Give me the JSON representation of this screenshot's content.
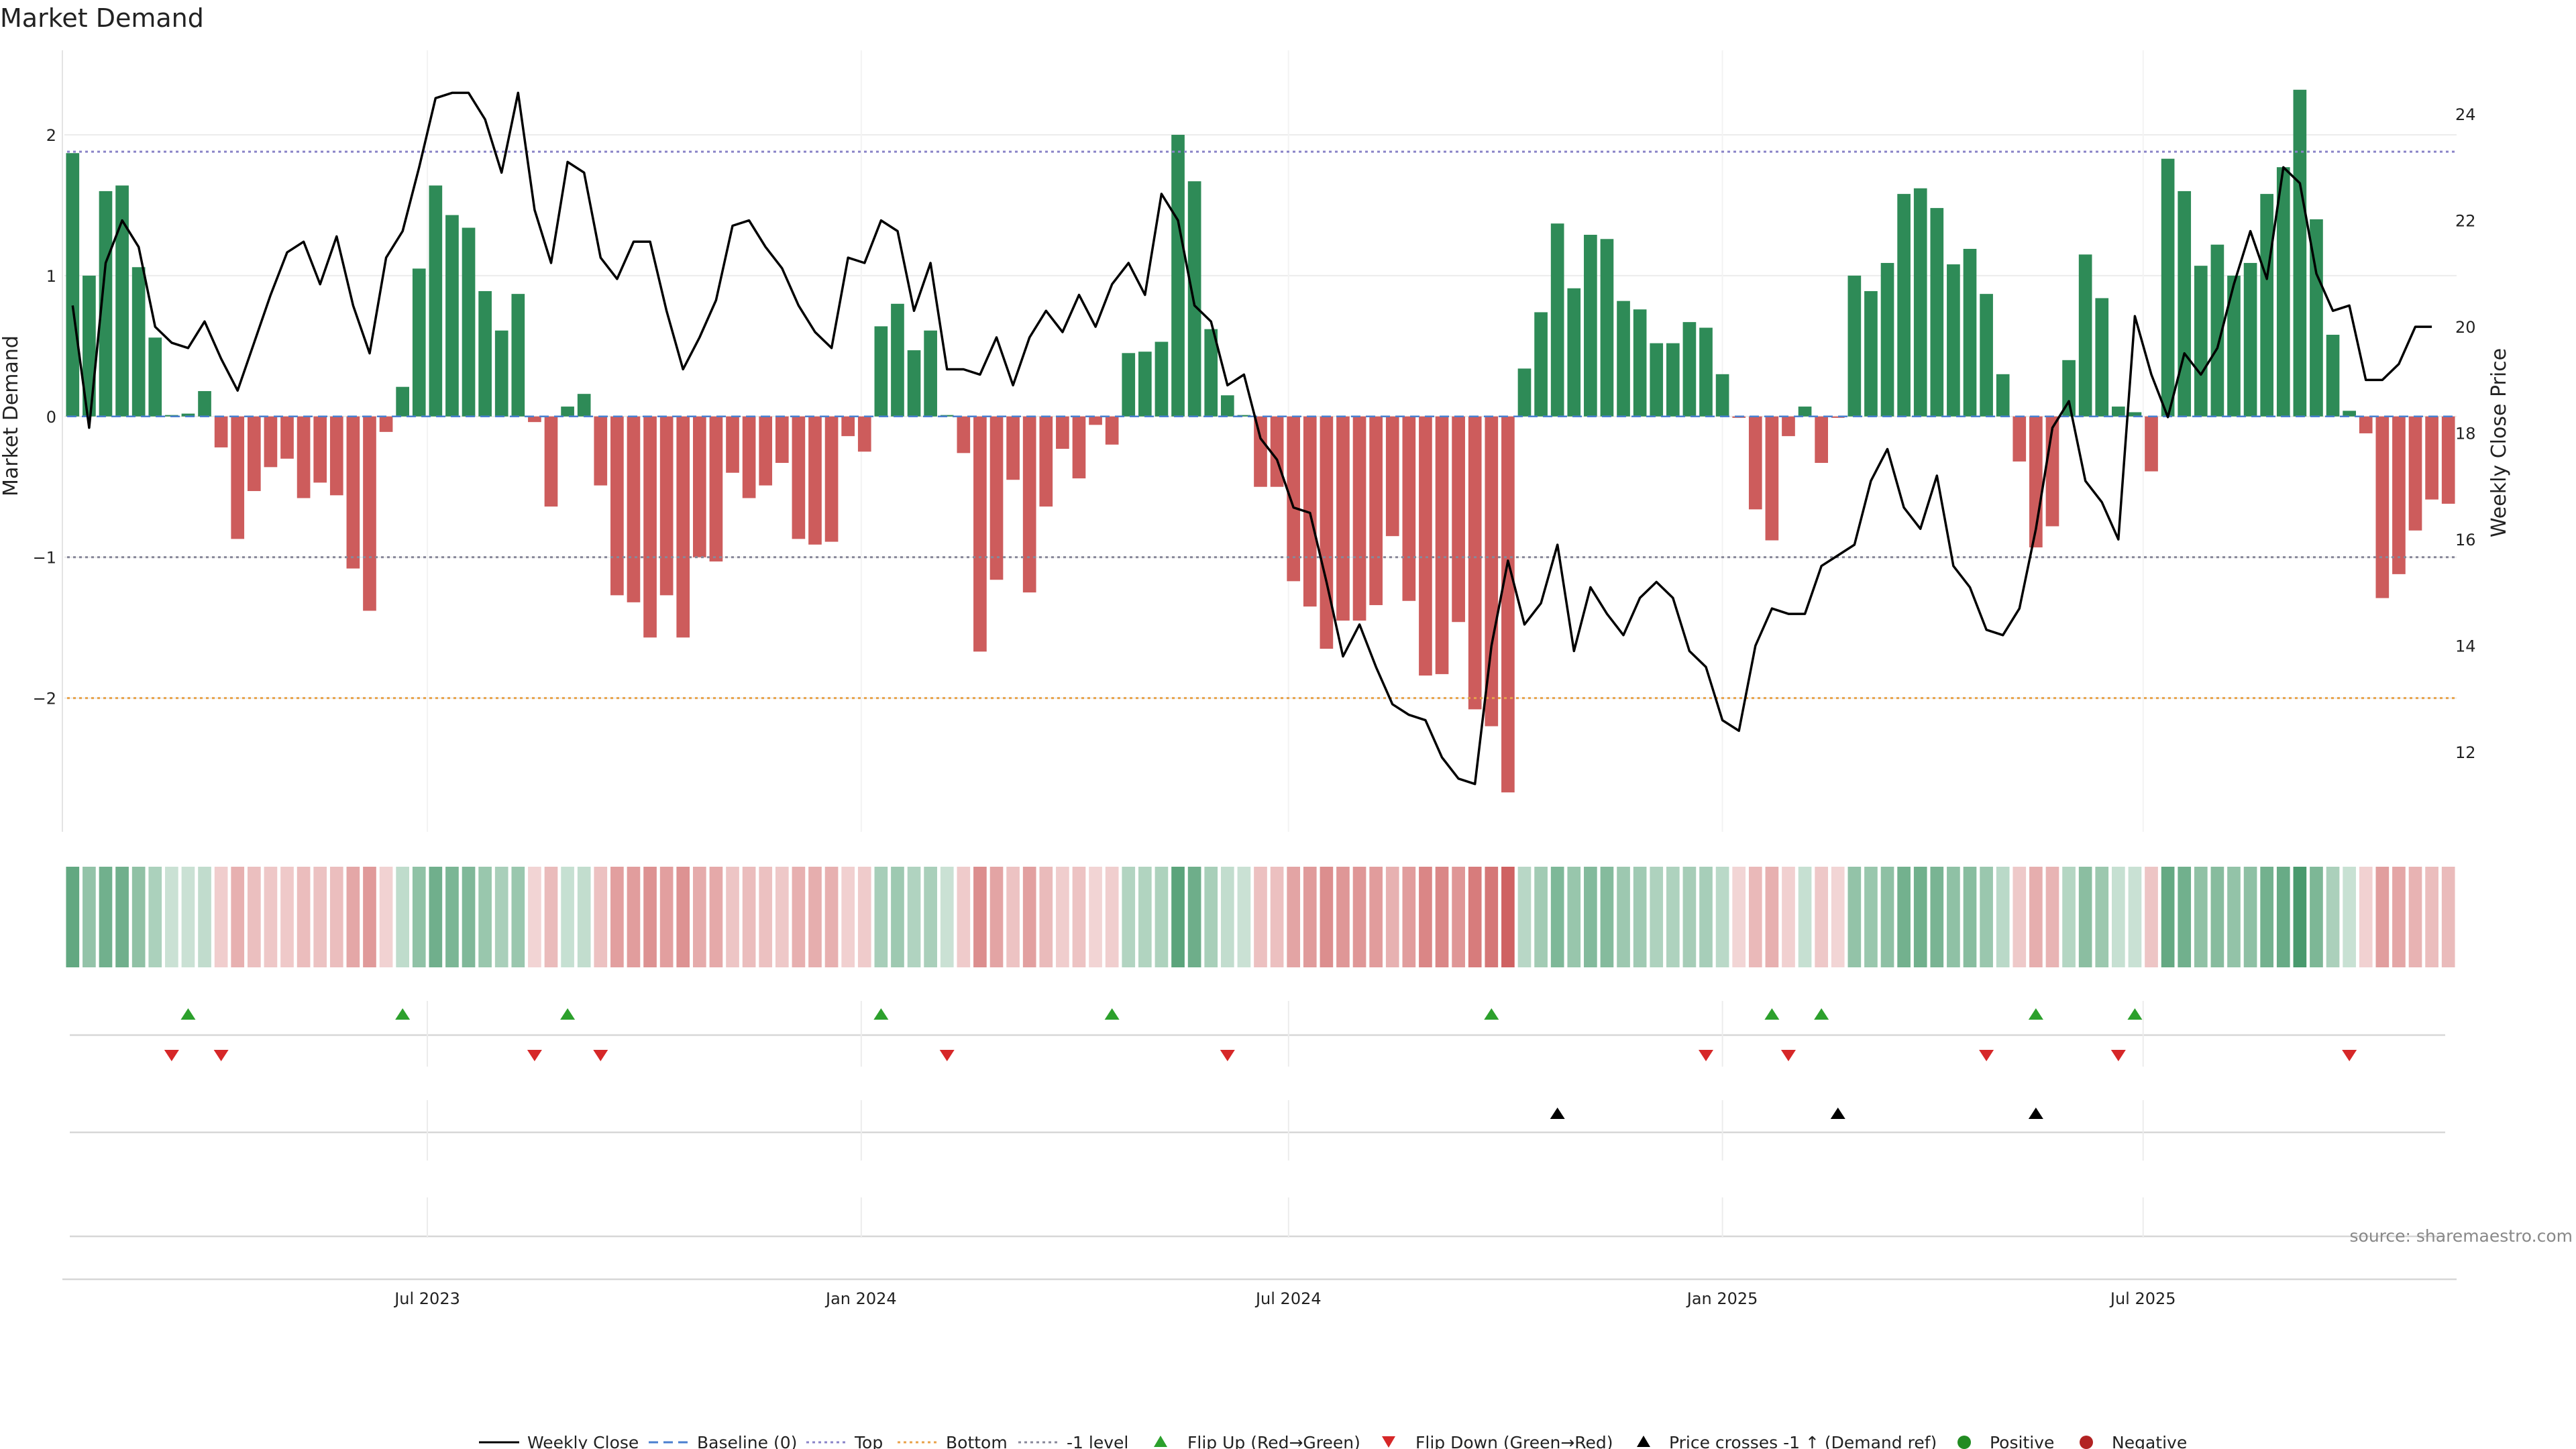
{
  "chart_data": {
    "type": "bar",
    "title": "Market Demand",
    "ylabel": "Market Demand",
    "y2label": "Weekly Close Price",
    "ylim": [
      -2.95,
      2.6
    ],
    "y2lim": [
      10.5,
      25.2
    ],
    "yticks": [
      -2,
      -1,
      0,
      1,
      2
    ],
    "y2ticks": [
      12,
      14,
      16,
      18,
      20,
      22,
      24
    ],
    "date_ticks": [
      "Jul 2023",
      "Jan 2024",
      "Jul 2024",
      "Jan 2025",
      "Jul 2025"
    ],
    "date_tick_weeks": [
      22,
      48.3,
      74.2,
      100.5,
      126
    ],
    "levels": {
      "top": 1.88,
      "bottom": -2.0,
      "minus_one": -1.0
    },
    "demand": [
      1.87,
      1.0,
      1.6,
      1.64,
      1.06,
      0.56,
      0.01,
      0.02,
      0.18,
      -0.22,
      -0.87,
      -0.53,
      -0.36,
      -0.3,
      -0.58,
      -0.47,
      -0.56,
      -1.08,
      -1.38,
      -0.11,
      0.21,
      1.05,
      1.64,
      1.43,
      1.34,
      0.89,
      0.61,
      0.87,
      -0.04,
      -0.64,
      0.07,
      0.16,
      -0.49,
      -1.27,
      -1.32,
      -1.57,
      -1.27,
      -1.57,
      -1.0,
      -1.03,
      -0.4,
      -0.58,
      -0.49,
      -0.33,
      -0.87,
      -0.91,
      -0.89,
      -0.14,
      -0.25,
      0.64,
      0.8,
      0.47,
      0.61,
      0.01,
      -0.26,
      -1.67,
      -1.16,
      -0.45,
      -1.25,
      -0.64,
      -0.23,
      -0.44,
      -0.06,
      -0.2,
      0.45,
      0.46,
      0.53,
      2.0,
      1.67,
      0.62,
      0.15,
      0.01,
      -0.5,
      -0.5,
      -1.17,
      -1.35,
      -1.65,
      -1.45,
      -1.45,
      -1.34,
      -0.85,
      -1.31,
      -1.84,
      -1.83,
      -1.46,
      -2.08,
      -2.2,
      -2.67,
      0.34,
      0.74,
      1.37,
      0.91,
      1.29,
      1.26,
      0.82,
      0.76,
      0.52,
      0.52,
      0.67,
      0.63,
      0.3,
      -0.01,
      -0.66,
      -0.88,
      -0.14,
      0.07,
      -0.33,
      -0.01,
      1.0,
      0.89,
      1.09,
      1.58,
      1.62,
      1.48,
      1.08,
      1.19,
      0.87,
      0.3,
      -0.32,
      -0.93,
      -0.78,
      0.4,
      1.15,
      0.84,
      0.07,
      0.03,
      -0.39,
      1.83,
      1.6,
      1.07,
      1.22,
      1.0,
      1.09,
      1.58,
      1.77,
      2.32,
      1.4,
      0.58,
      0.04,
      -0.12,
      -1.29,
      -1.12,
      -0.81,
      -0.59,
      -0.62
    ],
    "price": [
      20.4,
      18.1,
      21.2,
      22.0,
      21.5,
      20.0,
      19.7,
      19.6,
      20.1,
      19.4,
      18.8,
      19.7,
      20.6,
      21.4,
      21.6,
      20.8,
      21.7,
      20.4,
      19.5,
      21.3,
      21.8,
      23.0,
      24.3,
      24.4,
      24.4,
      23.9,
      22.9,
      24.4,
      22.2,
      21.2,
      23.1,
      22.9,
      21.3,
      20.9,
      21.6,
      21.6,
      20.3,
      19.2,
      19.8,
      20.5,
      21.9,
      22.0,
      21.5,
      21.1,
      20.4,
      19.9,
      19.6,
      21.3,
      21.2,
      22.0,
      21.8,
      20.3,
      21.2,
      19.2,
      19.2,
      19.1,
      19.8,
      18.9,
      19.8,
      20.3,
      19.9,
      20.6,
      20.0,
      20.8,
      21.2,
      20.6,
      22.5,
      22.0,
      20.4,
      20.1,
      18.9,
      19.1,
      17.9,
      17.5,
      16.6,
      16.5,
      15.2,
      13.8,
      14.4,
      13.6,
      12.9,
      12.7,
      12.6,
      11.9,
      11.5,
      11.4,
      14.0,
      15.6,
      14.4,
      14.8,
      15.9,
      13.9,
      15.1,
      14.6,
      14.2,
      14.9,
      15.2,
      14.9,
      13.9,
      13.6,
      12.6,
      12.4,
      14.0,
      14.7,
      14.6,
      14.6,
      15.5,
      15.7,
      15.9,
      17.1,
      17.7,
      16.6,
      16.2,
      17.2,
      15.5,
      15.1,
      14.3,
      14.2,
      14.7,
      16.2,
      18.1,
      18.6,
      17.1,
      16.7,
      16.0,
      20.2,
      19.1,
      18.3,
      19.5,
      19.1,
      19.6,
      20.8,
      21.8,
      20.9,
      23.0,
      22.7,
      21.0,
      20.3,
      20.4,
      19.0,
      19.0,
      19.3,
      20.0,
      20.0
    ],
    "flip_up_weeks": [
      7,
      20,
      30,
      49,
      63,
      86,
      103,
      106,
      119,
      125
    ],
    "flip_down_weeks": [
      6,
      9,
      28,
      32,
      53,
      70,
      99,
      104,
      116,
      124,
      138
    ],
    "price_cross_weeks": [
      90,
      107,
      119
    ],
    "legend": [
      "Weekly Close",
      "Baseline (0)",
      "Top",
      "Bottom",
      "-1 level",
      "Flip Up (Red→Green)",
      "Flip Down (Green→Red)",
      "Price crosses -1 ↑ (Demand ref)",
      "Positive",
      "Negative"
    ],
    "source": "source: sharemaestro.com"
  },
  "colors": {
    "positive": "#2e8b57",
    "negative": "#cd5c5c",
    "line": "#000000",
    "top": "#8a84c8",
    "bottom": "#e8a24a",
    "minus_one": "#888899",
    "baseline": "#4a7fcf",
    "flip_up": "#2ca02c",
    "flip_down": "#d62728",
    "cross": "#000000",
    "pos_dot": "#228b22",
    "neg_dot": "#b22222"
  }
}
